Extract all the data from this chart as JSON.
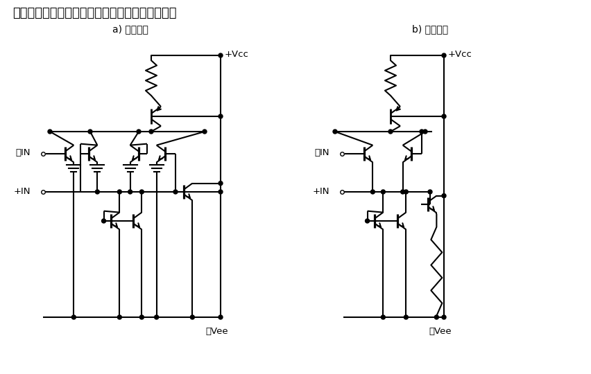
{
  "title": "図６　単電源と両電源オペアンプの入力段構成例",
  "label_a": "a) 単電源用",
  "label_b": "b) 両電源用",
  "bg_color": "#ffffff",
  "line_color": "#000000",
  "line_width": 1.5
}
